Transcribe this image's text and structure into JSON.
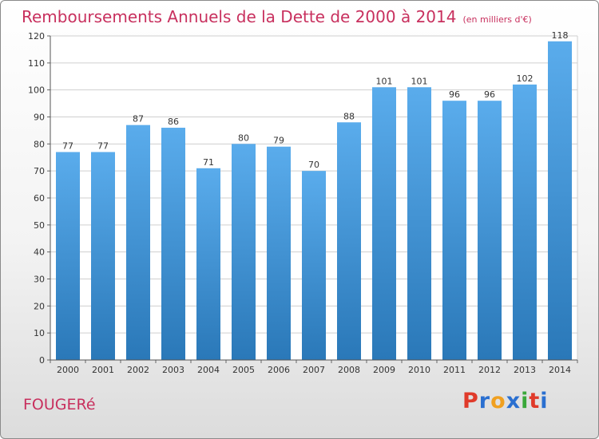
{
  "chart_data": {
    "type": "bar",
    "title": "Remboursements Annuels de la Dette de 2000 à 2014",
    "subtitle": "(en milliers d'€)",
    "xlabel": "",
    "ylabel": "",
    "categories": [
      "2000",
      "2001",
      "2002",
      "2003",
      "2004",
      "2005",
      "2006",
      "2007",
      "2008",
      "2009",
      "2010",
      "2011",
      "2012",
      "2013",
      "2014"
    ],
    "values": [
      77,
      77,
      87,
      86,
      71,
      80,
      79,
      70,
      88,
      101,
      101,
      96,
      96,
      102,
      118
    ],
    "ylim": [
      0,
      120
    ],
    "yticks": [
      0,
      10,
      20,
      30,
      40,
      50,
      60,
      70,
      80,
      90,
      100,
      110,
      120
    ],
    "grid": true,
    "bar_color_top": "#5aacec",
    "bar_color_bottom": "#2a78b8",
    "grid_color": "#cfcfcf"
  },
  "footer": {
    "location": "FOUGERé",
    "logo_text": "Proxiti",
    "logo_colors": [
      "#e03a2a",
      "#2a6fd0",
      "#f0a020",
      "#2a6fd0",
      "#3aa83a",
      "#e03a2a",
      "#2a6fd0"
    ]
  },
  "colors": {
    "title": "#c8305e"
  }
}
